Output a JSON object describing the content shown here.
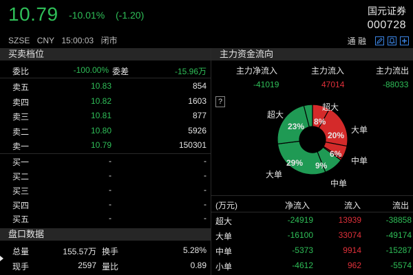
{
  "header": {
    "price": "10.79",
    "change_pct": "-10.01%",
    "change_abs": "(-1.20)",
    "stock_name": "国元证券",
    "stock_code": "000728",
    "exchange": "SZSE",
    "currency": "CNY",
    "time": "15:00:03",
    "status": "闭市",
    "toolbar_text": "通  融",
    "price_color": "#2fbf58"
  },
  "order_book": {
    "title": "买卖档位",
    "weibi_label": "委比",
    "weibi_value": "-100.00%",
    "weicha_label": "委差",
    "weicha_value": "-15.96万",
    "asks": [
      {
        "label": "卖五",
        "price": "10.83",
        "volume": "854"
      },
      {
        "label": "卖四",
        "price": "10.82",
        "volume": "1603"
      },
      {
        "label": "卖三",
        "price": "10.81",
        "volume": "877"
      },
      {
        "label": "卖二",
        "price": "10.80",
        "volume": "5926"
      },
      {
        "label": "卖一",
        "price": "10.79",
        "volume": "150301"
      }
    ],
    "bids": [
      {
        "label": "买一",
        "price": "-",
        "volume": "-"
      },
      {
        "label": "买二",
        "price": "-",
        "volume": "-"
      },
      {
        "label": "买三",
        "price": "-",
        "volume": "-"
      },
      {
        "label": "买四",
        "price": "-",
        "volume": "-"
      },
      {
        "label": "买五",
        "price": "-",
        "volume": "-"
      }
    ]
  },
  "market_data": {
    "title": "盘口数据",
    "total_vol_label": "总量",
    "total_vol_value": "155.57万",
    "turnover_label": "换手",
    "turnover_value": "5.28%",
    "cur_vol_label": "现手",
    "cur_vol_value": "2597",
    "vol_ratio_label": "量比",
    "vol_ratio_value": "0.89"
  },
  "main_flow": {
    "title": "主力资金流向",
    "net_in_label": "主力净流入",
    "in_label": "主力流入",
    "out_label": "主力流出",
    "net_in_value": "-41019",
    "in_value": "47014",
    "out_value": "-88033",
    "help": "?"
  },
  "chart_data": {
    "type": "pie",
    "slices": [
      {
        "category": "超大",
        "direction": "in",
        "pct": 8,
        "color": "#d42a2a"
      },
      {
        "category": "大单",
        "direction": "in",
        "pct": 20,
        "color": "#d42a2a"
      },
      {
        "category": "中单",
        "direction": "in",
        "pct": 6,
        "color": "#d42a2a"
      },
      {
        "category": "小单",
        "direction": "in",
        "pct": 1,
        "color": "#d42a2a"
      },
      {
        "category": "中单",
        "direction": "out",
        "pct": 9,
        "color": "#1f9a54"
      },
      {
        "category": "大单",
        "direction": "out",
        "pct": 29,
        "color": "#1f9a54"
      },
      {
        "category": "超大",
        "direction": "out",
        "pct": 23,
        "color": "#1f9a54"
      },
      {
        "category": "小单",
        "direction": "out",
        "pct": 4,
        "color": "#1f9a54"
      }
    ],
    "visible_pct_labels": [
      "8%",
      "20%",
      "6%",
      "9%",
      "29%",
      "23%"
    ],
    "outer_labels": {
      "top_right": "超大",
      "right": "大单",
      "right_lower": "中单",
      "bottom": "中单",
      "left_lower": "大单",
      "left_upper": "超大"
    }
  },
  "flow_table": {
    "headers": [
      "(万元)",
      "净流入",
      "流入",
      "流出"
    ],
    "rows": [
      {
        "label": "超大",
        "net": "-24919",
        "in": "13939",
        "out": "-38858"
      },
      {
        "label": "大单",
        "net": "-16100",
        "in": "33074",
        "out": "-49174"
      },
      {
        "label": "中单",
        "net": "-5373",
        "in": "9914",
        "out": "-15287"
      },
      {
        "label": "小单",
        "net": "-4612",
        "in": "962",
        "out": "-5574"
      }
    ]
  },
  "colors": {
    "up": "#e0303a",
    "down": "#2fbf58",
    "accent": "#3c86e6",
    "section_bg": "#262626"
  }
}
